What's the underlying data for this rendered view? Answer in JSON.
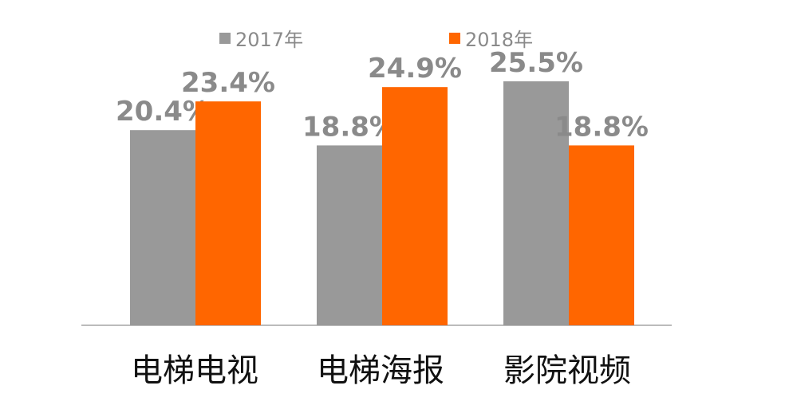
{
  "chart_data": {
    "type": "bar",
    "categories": [
      "电梯电视",
      "电梯海报",
      "影院视频"
    ],
    "series": [
      {
        "name": "2017年",
        "color": "#999999",
        "values": [
          20.4,
          18.8,
          25.5
        ],
        "labels": [
          "20.4%",
          "18.8%",
          "25.5%"
        ]
      },
      {
        "name": "2018年",
        "color": "#ff6600",
        "values": [
          23.4,
          24.9,
          18.8
        ],
        "labels": [
          "23.4%",
          "24.9%",
          "18.8%"
        ]
      }
    ],
    "ylim": [
      0,
      30
    ],
    "legend_position": "top",
    "grid": false
  },
  "colors": {
    "label_text": "#8a8a8a",
    "category_text": "#111111",
    "axis_line": "#bbbbbb"
  }
}
